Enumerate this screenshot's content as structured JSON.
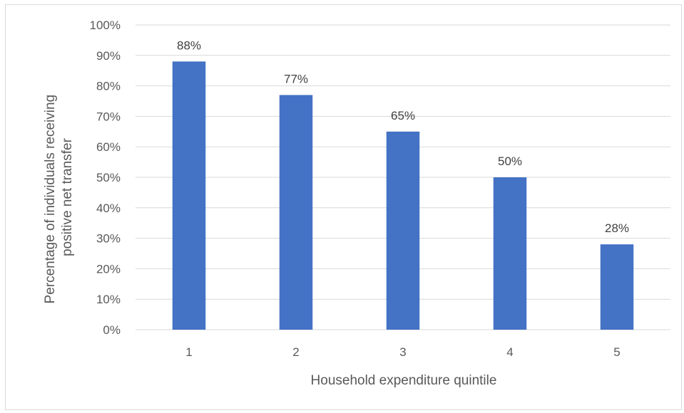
{
  "chart_data": {
    "type": "bar",
    "categories": [
      "1",
      "2",
      "3",
      "4",
      "5"
    ],
    "values": [
      88,
      77,
      65,
      50,
      28
    ],
    "data_labels": [
      "88%",
      "77%",
      "65%",
      "50%",
      "28%"
    ],
    "title": "",
    "xlabel": "Household expenditure quintile",
    "ylabel_lines": [
      "Percentage of individuals receiving",
      "positive net transfer"
    ],
    "ylim": [
      0,
      100
    ],
    "yticks": [
      0,
      10,
      20,
      30,
      40,
      50,
      60,
      70,
      80,
      90,
      100
    ],
    "ytick_labels": [
      "0%",
      "10%",
      "20%",
      "30%",
      "40%",
      "50%",
      "60%",
      "70%",
      "80%",
      "90%",
      "100%"
    ],
    "grid": "horizontal",
    "legend": "none",
    "bar_color": "#4472c4",
    "grid_color": "#d9d9d9"
  }
}
